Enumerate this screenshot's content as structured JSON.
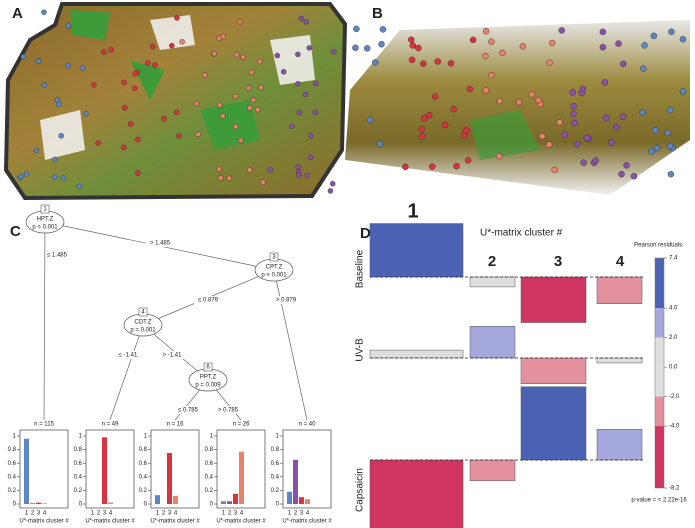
{
  "panels": [
    "A",
    "B",
    "C",
    "D"
  ],
  "tree": {
    "nodes": [
      {
        "id": "1",
        "label": "HPT.Z",
        "p": "p < 0.001"
      },
      {
        "id": "3",
        "label": "CPT.Z",
        "p": "p < 0.001"
      },
      {
        "id": "4",
        "label": "CDT.Z",
        "p": "p = 0.001"
      },
      {
        "id": "6",
        "label": "PPT.Z",
        "p": "p = 0.009"
      }
    ],
    "edges": [
      "≤ 1.485",
      "> 1.485",
      "≤ 0.879",
      "> 0.879",
      "≤ -1.41",
      "> -1.41",
      "≤ 0.785",
      "> 0.785"
    ]
  },
  "chart_data": [
    {
      "type": "bar",
      "title": "n = 115",
      "categories": [
        "1",
        "2",
        "3",
        "4"
      ],
      "values": [
        0.96,
        0.01,
        0.02,
        0.01
      ],
      "colors": [
        "#5b87c5",
        "#8e4fa8",
        "#d9333f",
        "#e8806a"
      ],
      "x_label": "U*-matrix cluster #",
      "ylim": [
        0,
        1
      ],
      "yticks": [
        0,
        0.2,
        0.4,
        0.6,
        0.8,
        1
      ]
    },
    {
      "type": "bar",
      "title": "n = 49",
      "categories": [
        "1",
        "2",
        "3",
        "4"
      ],
      "values": [
        0,
        0,
        0.98,
        0.02
      ],
      "colors": [
        "#5b87c5",
        "#8e4fa8",
        "#d9333f",
        "#e8806a"
      ],
      "x_label": "U*-matrix cluster #",
      "ylim": [
        0,
        1
      ],
      "yticks": [
        0,
        0.2,
        0.4,
        0.6,
        0.8,
        1
      ]
    },
    {
      "type": "bar",
      "title": "n = 16",
      "categories": [
        "1",
        "2",
        "3",
        "4"
      ],
      "values": [
        0.13,
        0,
        0.75,
        0.12
      ],
      "colors": [
        "#5b87c5",
        "#8e4fa8",
        "#d9333f",
        "#e8806a"
      ],
      "x_label": "U*-matrix cluster #",
      "ylim": [
        0,
        1
      ],
      "yticks": [
        0,
        0.2,
        0.4,
        0.6,
        0.8,
        1
      ]
    },
    {
      "type": "bar",
      "title": "n = 26",
      "categories": [
        "1",
        "2",
        "3",
        "4"
      ],
      "values": [
        0.04,
        0.04,
        0.15,
        0.77
      ],
      "colors": [
        "#5b87c5",
        "#8e4fa8",
        "#d9333f",
        "#e8806a"
      ],
      "x_label": "U*-matrix cluster #",
      "ylim": [
        0,
        1
      ],
      "yticks": [
        0,
        0.2,
        0.4,
        0.6,
        0.8,
        1
      ]
    },
    {
      "type": "bar",
      "title": "n = 40",
      "categories": [
        "1",
        "2",
        "3",
        "4"
      ],
      "values": [
        0.18,
        0.65,
        0.1,
        0.07
      ],
      "colors": [
        "#5b87c5",
        "#8e4fa8",
        "#d9333f",
        "#e8806a"
      ],
      "x_label": "U*-matrix cluster #",
      "ylim": [
        0,
        1
      ],
      "yticks": [
        0,
        0.2,
        0.4,
        0.6,
        0.8,
        1
      ]
    },
    {
      "type": "assoc",
      "title": "U*-matrix cluster #",
      "categories": [
        "1",
        "2",
        "3",
        "4"
      ],
      "category_colors": [
        "#4a6fc2",
        "#8e4fa8",
        "#d02a4a",
        "#e8806a"
      ],
      "series": [
        {
          "name": "Baseline",
          "values": [
            5.4,
            -1.0,
            -4.6,
            -2.7
          ]
        },
        {
          "name": "UV-B",
          "values": [
            0.8,
            3.2,
            -2.6,
            -0.5
          ]
        },
        {
          "name": "Capsaicin",
          "values": [
            -6.9,
            -2.1,
            7.4,
            3.1
          ]
        }
      ],
      "legend_title": "Pearson residuals:",
      "ylim": [
        -8.2,
        7.4
      ],
      "yticks": [
        7.4,
        {
          "value": 4,
          "label": "4.0"
        },
        {
          "value": 2,
          "label": "2.0"
        },
        {
          "value": 0,
          "label": "0.0"
        },
        {
          "value": -2,
          "label": "-2.0"
        },
        {
          "value": -4,
          "label": "-4.0"
        },
        -8.2
      ],
      "band_colors": [
        "#4b62b5",
        "#a4a8dc",
        "#dedede",
        "#dedede",
        "#e3909f",
        "#cf3560"
      ],
      "note": "p-value = < 2.22e-16"
    }
  ]
}
